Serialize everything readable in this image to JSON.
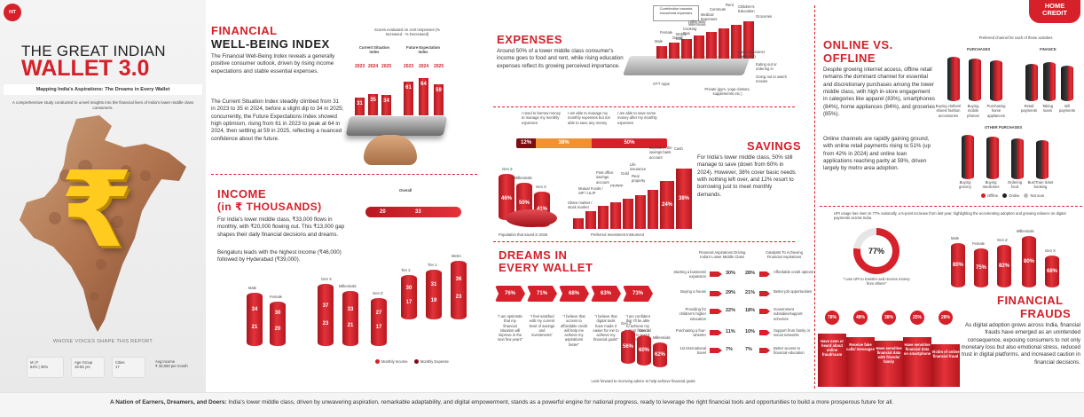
{
  "header": {
    "title_line1": "THE GREAT INDIAN",
    "title_line2": "WALLET 3.0",
    "subtitle": "Mapping India's Aspirations: The Dreams in Every Wallet",
    "description": "A comprehensive study conducted to unveil insights into the financial lives of India's lower middle class consumers.",
    "left_badge": "HIT",
    "brand_line1": "HOME",
    "brand_line2": "CREDIT"
  },
  "voices": {
    "title": "WHOSE VOICES SHAPE THIS REPORT",
    "items": [
      {
        "label": "M | F",
        "value": "64% | 35%"
      },
      {
        "label": "Age Group",
        "value": "18-55 yrs"
      },
      {
        "label": "Cities",
        "value": "17"
      },
      {
        "label": "Avg Income",
        "value": "₹ 33,000 per month"
      }
    ]
  },
  "fwi": {
    "title_line1": "FINANCIAL",
    "title_line2": "WELL-BEING INDEX",
    "para1": "The Financial Well-Being Index reveals a generally positive consumer outlook, driven by rising income expectations and stable essential expenses.",
    "para2": "The Current Situation Index steadily climbed from 31 in 2023 to 35 in 2024, before a slight dip to 34 in 2025; concurrently, the Future Expectations Index showed high optimism, rising from 61 in 2023 to peak at 64 in 2024, then settling at 59 in 2025, reflecting a nuanced confidence about the future.",
    "chart_note": "Scores evaluated on cent responses (% Increased - % Decreased)",
    "current_label": "Current Situation Index",
    "future_label": "Future Expectation Index",
    "years": [
      "2023",
      "2024",
      "2025"
    ],
    "current_values": [
      "31",
      "35",
      "34"
    ],
    "future_values": [
      "61",
      "64",
      "59"
    ]
  },
  "income": {
    "title_line1": "INCOME",
    "title_line2": "(in ₹ THOUSANDS)",
    "para1": "For India's lower middle class, ₹33,000 flows in monthly, with ₹20,000 flowing out. This ₹13,000 gap shapes their daily financial decisions and dreams.",
    "para2": "Bengaluru leads with the highest income (₹46,000) followed by Hyderabad (₹39,000).",
    "overall_label": "Overall",
    "overall_expense": "20",
    "overall_income": "33",
    "groups": [
      {
        "label": "Male",
        "income": "34",
        "expense": "21"
      },
      {
        "label": "Female",
        "income": "30",
        "expense": "20"
      },
      {
        "label": "Gen X",
        "income": "37",
        "expense": "23"
      },
      {
        "label": "Millennials",
        "income": "33",
        "expense": "21"
      },
      {
        "label": "Gen Z",
        "income": "27",
        "expense": "17"
      },
      {
        "label": "Tier 2",
        "income": "30",
        "expense": "17"
      },
      {
        "label": "Tier 1",
        "income": "31",
        "expense": "19"
      },
      {
        "label": "Metro",
        "income": "36",
        "expense": "23"
      }
    ],
    "legend_income": "Monthly Income",
    "legend_expense": "Monthly Expense"
  },
  "expenses": {
    "title": "EXPENSES",
    "para": "Around 50% of a lower middle class consumer's income goes to food and rent, while rising education expenses reflect its growing perceived importance.",
    "contribution_label": "Contribution towards household expenses",
    "items": [
      "Rent",
      "Children's Education",
      "Groceries",
      "Commute",
      "Medical Expenses",
      "Utility Bills",
      "Cooking Gas",
      "Mobile Bills",
      "Millennials",
      "Gen Z",
      "Female",
      "Male",
      "Eating out or ordering in",
      "Going out to watch movies",
      "Loan (consumer / personal)",
      "Private (gym, yoga classes, supplements etc.)",
      "OTT Apps"
    ],
    "ability_labels": [
      "I need to borrow money to manage my monthly expenses",
      "I am able to manage my monthly expenses but not able to save any money",
      "I am able to save some money after my monthly expenses"
    ],
    "ability_values": [
      "12%",
      "38%",
      "50%"
    ]
  },
  "savings": {
    "title": "SAVINGS",
    "para": "For India's lower middle class, 50% still manage to save (down from 60% in 2024). However, 38% cover basic needs with nothing left over, and 12% resort to borrowing just to meet monthly demands.",
    "pop_label": "Population that saved in 2025",
    "gen": [
      {
        "label": "Gen Z",
        "value": "46%"
      },
      {
        "label": "Millennials",
        "value": "50%"
      },
      {
        "label": "Gen X",
        "value": "41%"
      }
    ],
    "instruments_label": "Preferred Investment Instrument",
    "instruments": [
      "Share market / stock market",
      "Mutual Funds / SIP / ULIP",
      "Post office savings account",
      "PF/PPF",
      "Gold",
      "Life insurance",
      "Real property",
      "Deposit in the savings bank account",
      "Cash"
    ],
    "instrument_pcts": [
      "24%",
      "38%"
    ]
  },
  "dreams": {
    "title_line1": "DREAMS IN",
    "title_line2": "EVERY WALLET",
    "percents": [
      "76%",
      "71%",
      "68%",
      "63%",
      "73%"
    ],
    "quotes": [
      "\"I am optimistic that my financial situation will improve in the next few years\"",
      "\"I feel satisfied with my current level of savings and investments\"",
      "\"I believe that access to affordable credit will help me achieve my aspirations faster\"",
      "\"I believe that digital tools have made it easier for me to achieve my financial goals\"",
      "\"I am confident that I'll be able to achieve my current financial goals in next 5 years\""
    ],
    "gen": [
      {
        "label": "Gen Z",
        "value": "56%"
      },
      {
        "label": "Gen X",
        "value": "60%"
      },
      {
        "label": "Millennials",
        "value": "62%"
      }
    ],
    "footer": "Look forward to receiving advice to help achieve financial goals"
  },
  "aspirations": {
    "left_title": "Financial Aspirations Driving India's Lower Middle Class",
    "right_title": "Catalysts To Achieving Financial Aspirations",
    "left": [
      {
        "label": "Starting a business/ expansion",
        "value": "30%"
      },
      {
        "label": "Buying a house",
        "value": "29%"
      },
      {
        "label": "Providing for children's higher education",
        "value": "22%"
      },
      {
        "label": "Purchasing a four-wheeler",
        "value": "11%"
      },
      {
        "label": "1st international travel",
        "value": "7%"
      }
    ],
    "right": [
      {
        "label": "Affordable credit options",
        "value": "28%"
      },
      {
        "label": "Better job opportunities",
        "value": "21%"
      },
      {
        "label": "Government subsidies/support schemes",
        "value": "18%"
      },
      {
        "label": "Support from family or social networks",
        "value": "10%"
      },
      {
        "label": "Better access to financial education",
        "value": "7%"
      }
    ]
  },
  "online": {
    "title_line1": "ONLINE VS.",
    "title_line2": "OFFLINE",
    "para1": "Despite growing internet access, offline retail remains the dominant channel for essential and discretionary purchases among the lower middle class, with high in-store engagement in categories like apparel (83%), smartphones (84%), home appliances (84%), and groceries (85%).",
    "para2": "Online channels are rapidly gaining ground, with online retail payments rising to 51% (up from 42% in 2024) and online loan applications reaching parity at 59%, driven largely by metro area adoption.",
    "chart_title": "Preferred channel for each of these activities",
    "purchases_label": "PURCHASES",
    "finance_label": "FINANCE",
    "other_label": "OTHER PURCHASES",
    "top_items": [
      "Buying clothes/ shoes/ fashion accessories",
      "Buying mobile phones",
      "Purchasing home appliances",
      "Retail payments",
      "Taking loans",
      "Bill payments"
    ],
    "bottom_items": [
      "Buying grocery",
      "Buying medicines",
      "Ordering food",
      "Bus/Train ticket booking"
    ],
    "legend": [
      "Offline",
      "Online",
      "Not sure"
    ]
  },
  "upi": {
    "note": "UPI usage has risen to 77% nationally, a 5-point increase from last year, highlighting the accelerating adoption and growing reliance on digital payments across India.",
    "value": "77%",
    "quote": "\"I use UPI to transfer and receive money from others\"",
    "gen": [
      {
        "label": "Male",
        "value": "80%"
      },
      {
        "label": "Female",
        "value": "75%"
      },
      {
        "label": "Gen Z",
        "value": "82%"
      },
      {
        "label": "Millennials",
        "value": "80%"
      },
      {
        "label": "Gen X",
        "value": "68%"
      }
    ]
  },
  "frauds": {
    "title_line1": "FINANCIAL",
    "title_line2": "FRAUDS",
    "para": "As digital adoption grows across India, financial frauds have emerged as an unintended consequence, exposing consumers to not only monetary loss but also emotional stress, reduced trust in digital platforms, and increased caution in financial decisions.",
    "percents": [
      "78%",
      "48%",
      "38%",
      "25%",
      "28%"
    ],
    "items": [
      "Have seen or heard about online fraud/scam",
      "Receive fake calls/ messages",
      "Have sensitive financial data with friends/ family",
      "Have sensitive financial data on smartphone",
      "Victim of online financial fraud"
    ]
  },
  "footer": {
    "bold": "A Nation of Earners, Dreamers, and Doers:",
    "text": " India's lower middle class, driven by unwavering aspiration, remarkable adaptability, and digital empowerment, stands as a powerful engine for national progress, ready to leverage the right financial tools and opportunities to build a more prosperous future for all."
  },
  "colors": {
    "accent": "#d6202a",
    "dark": "#222222",
    "light": "#f3f3f3"
  }
}
